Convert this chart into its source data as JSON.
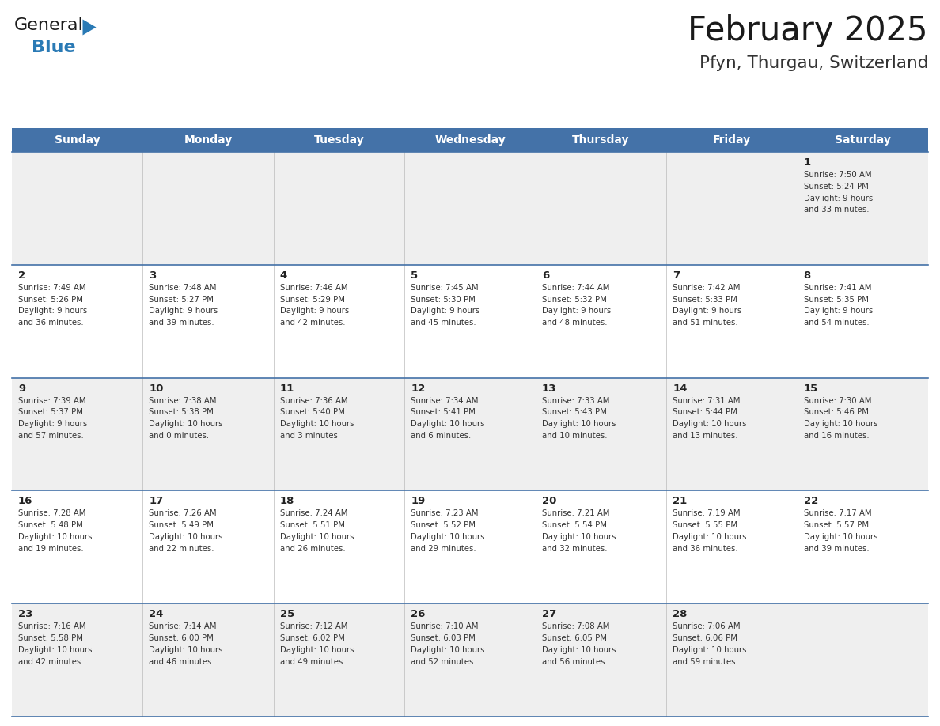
{
  "title": "February 2025",
  "subtitle": "Pfyn, Thurgau, Switzerland",
  "days_of_week": [
    "Sunday",
    "Monday",
    "Tuesday",
    "Wednesday",
    "Thursday",
    "Friday",
    "Saturday"
  ],
  "header_bg": "#4472a8",
  "header_text": "#ffffff",
  "row_bg_odd": "#efefef",
  "row_bg_even": "#ffffff",
  "cell_border_color": "#4472a8",
  "day_num_color": "#222222",
  "info_text_color": "#333333",
  "title_color": "#1a1a1a",
  "subtitle_color": "#333333",
  "logo_general_color": "#1a1a1a",
  "logo_blue_color": "#2a7ab5",
  "logo_triangle_color": "#2a7ab5",
  "weeks": [
    {
      "days": [
        {
          "day": null,
          "col": 0
        },
        {
          "day": null,
          "col": 1
        },
        {
          "day": null,
          "col": 2
        },
        {
          "day": null,
          "col": 3
        },
        {
          "day": null,
          "col": 4
        },
        {
          "day": null,
          "col": 5
        },
        {
          "day": 1,
          "col": 6,
          "sunrise": "7:50 AM",
          "sunset": "5:24 PM",
          "daylight_h": "9 hours",
          "daylight_m": "and 33 minutes."
        }
      ]
    },
    {
      "days": [
        {
          "day": 2,
          "col": 0,
          "sunrise": "7:49 AM",
          "sunset": "5:26 PM",
          "daylight_h": "9 hours",
          "daylight_m": "and 36 minutes."
        },
        {
          "day": 3,
          "col": 1,
          "sunrise": "7:48 AM",
          "sunset": "5:27 PM",
          "daylight_h": "9 hours",
          "daylight_m": "and 39 minutes."
        },
        {
          "day": 4,
          "col": 2,
          "sunrise": "7:46 AM",
          "sunset": "5:29 PM",
          "daylight_h": "9 hours",
          "daylight_m": "and 42 minutes."
        },
        {
          "day": 5,
          "col": 3,
          "sunrise": "7:45 AM",
          "sunset": "5:30 PM",
          "daylight_h": "9 hours",
          "daylight_m": "and 45 minutes."
        },
        {
          "day": 6,
          "col": 4,
          "sunrise": "7:44 AM",
          "sunset": "5:32 PM",
          "daylight_h": "9 hours",
          "daylight_m": "and 48 minutes."
        },
        {
          "day": 7,
          "col": 5,
          "sunrise": "7:42 AM",
          "sunset": "5:33 PM",
          "daylight_h": "9 hours",
          "daylight_m": "and 51 minutes."
        },
        {
          "day": 8,
          "col": 6,
          "sunrise": "7:41 AM",
          "sunset": "5:35 PM",
          "daylight_h": "9 hours",
          "daylight_m": "and 54 minutes."
        }
      ]
    },
    {
      "days": [
        {
          "day": 9,
          "col": 0,
          "sunrise": "7:39 AM",
          "sunset": "5:37 PM",
          "daylight_h": "9 hours",
          "daylight_m": "and 57 minutes."
        },
        {
          "day": 10,
          "col": 1,
          "sunrise": "7:38 AM",
          "sunset": "5:38 PM",
          "daylight_h": "10 hours",
          "daylight_m": "and 0 minutes."
        },
        {
          "day": 11,
          "col": 2,
          "sunrise": "7:36 AM",
          "sunset": "5:40 PM",
          "daylight_h": "10 hours",
          "daylight_m": "and 3 minutes."
        },
        {
          "day": 12,
          "col": 3,
          "sunrise": "7:34 AM",
          "sunset": "5:41 PM",
          "daylight_h": "10 hours",
          "daylight_m": "and 6 minutes."
        },
        {
          "day": 13,
          "col": 4,
          "sunrise": "7:33 AM",
          "sunset": "5:43 PM",
          "daylight_h": "10 hours",
          "daylight_m": "and 10 minutes."
        },
        {
          "day": 14,
          "col": 5,
          "sunrise": "7:31 AM",
          "sunset": "5:44 PM",
          "daylight_h": "10 hours",
          "daylight_m": "and 13 minutes."
        },
        {
          "day": 15,
          "col": 6,
          "sunrise": "7:30 AM",
          "sunset": "5:46 PM",
          "daylight_h": "10 hours",
          "daylight_m": "and 16 minutes."
        }
      ]
    },
    {
      "days": [
        {
          "day": 16,
          "col": 0,
          "sunrise": "7:28 AM",
          "sunset": "5:48 PM",
          "daylight_h": "10 hours",
          "daylight_m": "and 19 minutes."
        },
        {
          "day": 17,
          "col": 1,
          "sunrise": "7:26 AM",
          "sunset": "5:49 PM",
          "daylight_h": "10 hours",
          "daylight_m": "and 22 minutes."
        },
        {
          "day": 18,
          "col": 2,
          "sunrise": "7:24 AM",
          "sunset": "5:51 PM",
          "daylight_h": "10 hours",
          "daylight_m": "and 26 minutes."
        },
        {
          "day": 19,
          "col": 3,
          "sunrise": "7:23 AM",
          "sunset": "5:52 PM",
          "daylight_h": "10 hours",
          "daylight_m": "and 29 minutes."
        },
        {
          "day": 20,
          "col": 4,
          "sunrise": "7:21 AM",
          "sunset": "5:54 PM",
          "daylight_h": "10 hours",
          "daylight_m": "and 32 minutes."
        },
        {
          "day": 21,
          "col": 5,
          "sunrise": "7:19 AM",
          "sunset": "5:55 PM",
          "daylight_h": "10 hours",
          "daylight_m": "and 36 minutes."
        },
        {
          "day": 22,
          "col": 6,
          "sunrise": "7:17 AM",
          "sunset": "5:57 PM",
          "daylight_h": "10 hours",
          "daylight_m": "and 39 minutes."
        }
      ]
    },
    {
      "days": [
        {
          "day": 23,
          "col": 0,
          "sunrise": "7:16 AM",
          "sunset": "5:58 PM",
          "daylight_h": "10 hours",
          "daylight_m": "and 42 minutes."
        },
        {
          "day": 24,
          "col": 1,
          "sunrise": "7:14 AM",
          "sunset": "6:00 PM",
          "daylight_h": "10 hours",
          "daylight_m": "and 46 minutes."
        },
        {
          "day": 25,
          "col": 2,
          "sunrise": "7:12 AM",
          "sunset": "6:02 PM",
          "daylight_h": "10 hours",
          "daylight_m": "and 49 minutes."
        },
        {
          "day": 26,
          "col": 3,
          "sunrise": "7:10 AM",
          "sunset": "6:03 PM",
          "daylight_h": "10 hours",
          "daylight_m": "and 52 minutes."
        },
        {
          "day": 27,
          "col": 4,
          "sunrise": "7:08 AM",
          "sunset": "6:05 PM",
          "daylight_h": "10 hours",
          "daylight_m": "and 56 minutes."
        },
        {
          "day": 28,
          "col": 5,
          "sunrise": "7:06 AM",
          "sunset": "6:06 PM",
          "daylight_h": "10 hours",
          "daylight_m": "and 59 minutes."
        },
        {
          "day": null,
          "col": 6
        }
      ]
    }
  ]
}
